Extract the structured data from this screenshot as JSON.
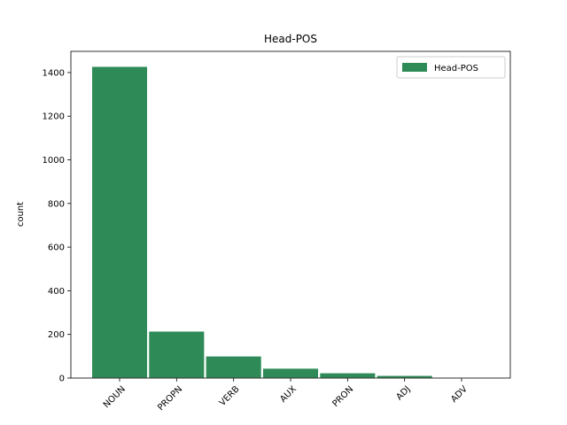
{
  "chart_data": {
    "type": "bar",
    "title": "Head-POS",
    "y_label": "count",
    "categories": [
      "NOUN",
      "PROPN",
      "VERB",
      "AUX",
      "PRON",
      "ADJ",
      "ADV"
    ],
    "series": [
      {
        "name": "Head-POS",
        "color": "#2e8b57",
        "values": [
          1428,
          215,
          101,
          45,
          24,
          12,
          2
        ]
      }
    ],
    "ylim": [
      0,
      1497
    ],
    "yticks": [
      0,
      200,
      400,
      600,
      800,
      1000,
      1200,
      1400
    ],
    "legend": "upper right"
  }
}
